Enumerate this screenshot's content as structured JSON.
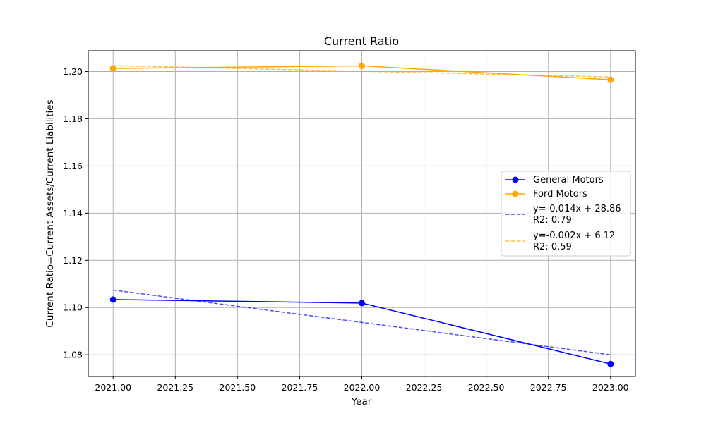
{
  "chart_data": {
    "type": "line",
    "title": "Current Ratio",
    "xlabel": "Year",
    "ylabel": "Current Ratio=Current Assets/Current Liabilities",
    "xlim": [
      2020.9,
      2023.1
    ],
    "ylim": [
      1.0708,
      1.2088
    ],
    "x_ticks": [
      "2021.00",
      "2021.25",
      "2021.50",
      "2021.75",
      "2022.00",
      "2022.25",
      "2022.50",
      "2022.75",
      "2023.00"
    ],
    "y_ticks": [
      "1.08",
      "1.10",
      "1.12",
      "1.14",
      "1.16",
      "1.18",
      "1.20"
    ],
    "grid": true,
    "legend_position": "center-right",
    "x": [
      2021,
      2022,
      2023
    ],
    "series": [
      {
        "name": "General Motors",
        "values": [
          1.1034,
          1.1019,
          1.0761
        ],
        "color": "#0000ff",
        "style": "solid",
        "marker": "circle"
      },
      {
        "name": "Ford Motors",
        "values": [
          1.2013,
          1.2024,
          1.1965
        ],
        "color": "#ffa500",
        "style": "solid",
        "marker": "circle"
      }
    ],
    "trendlines": [
      {
        "label_line1": "y=-0.014x + 28.86",
        "label_line2": "R2: 0.79",
        "slope": -0.014,
        "intercept": 28.86,
        "values": [
          1.1074,
          1.0937,
          1.08
        ],
        "color": "#0000ff",
        "style": "dashed"
      },
      {
        "label_line1": "y=-0.002x + 6.12",
        "label_line2": "R2: 0.59",
        "slope": -0.002,
        "intercept": 6.12,
        "values": [
          1.2025,
          1.2001,
          1.1977
        ],
        "color": "#ffa500",
        "style": "dashed"
      }
    ]
  }
}
